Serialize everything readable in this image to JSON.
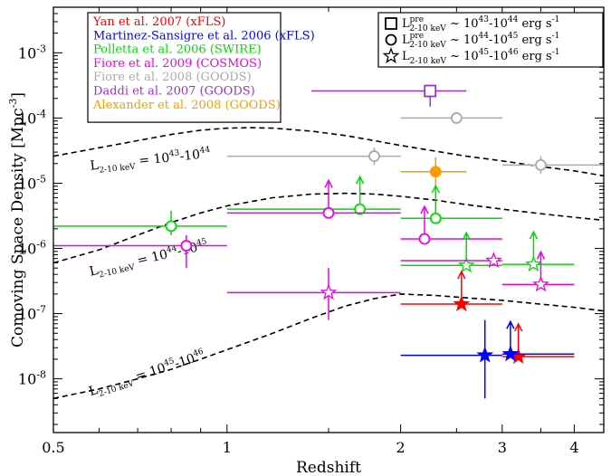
{
  "chart_data": {
    "type": "scatter",
    "xlabel": "Redshift",
    "ylabel": "Comoving Space Density [Mpc",
    "ylabel_sup": "-3",
    "ylabel_tail": "]",
    "x_scale": "log",
    "y_scale": "log",
    "xlim": [
      0.5,
      4.5
    ],
    "ylim": [
      1.5e-09,
      0.005
    ],
    "x_ticks": [
      {
        "value": 0.5,
        "label": "0.5"
      },
      {
        "value": 1,
        "label": "1"
      },
      {
        "value": 2,
        "label": "2"
      },
      {
        "value": 3,
        "label": "3"
      },
      {
        "value": 4,
        "label": "4"
      }
    ],
    "y_ticks": [
      {
        "value": 1e-08,
        "base": "10",
        "exp": "-8"
      },
      {
        "value": 1e-07,
        "base": "10",
        "exp": "-7"
      },
      {
        "value": 1e-06,
        "base": "10",
        "exp": "-6"
      },
      {
        "value": 1e-05,
        "base": "10",
        "exp": "-5"
      },
      {
        "value": 0.0001,
        "base": "10",
        "exp": "-4"
      },
      {
        "value": 0.001,
        "base": "10",
        "exp": "-3"
      }
    ],
    "legend_placement": "top-left",
    "legend": [
      {
        "label": "Yan et al. 2007 (xFLS)",
        "color": "#ff0000"
      },
      {
        "label": "Martinez-Sansigre et al. 2006 (xFLS)",
        "color": "#0000ff"
      },
      {
        "label": "Polletta et al. 2006 (SWIRE)",
        "color": "#00dd00"
      },
      {
        "label": "Fiore et al. 2009 (COSMOS)",
        "color": "#ee00ee"
      },
      {
        "label": "Fiore et al. 2008 (GOODS)",
        "color": "#aaaaaa"
      },
      {
        "label": "Daddi et al. 2007 (GOODS)",
        "color": "#9933cc"
      },
      {
        "label": "Alexander et al. 2008 (GOODS)",
        "color": "#ff9900"
      }
    ],
    "symbol_legend_placement": "top-right",
    "symbol_legend": [
      {
        "symbol": "square",
        "prefix": "L",
        "sup": "pre",
        "sub": "2-10 keV",
        "range": " ~ 10",
        "e1": "43",
        "mid": "-10",
        "e2": "44",
        "unit": " erg s",
        "uexp": "-1"
      },
      {
        "symbol": "circle",
        "prefix": "L",
        "sup": "pre",
        "sub": "2-10 keV",
        "range": " ~ 10",
        "e1": "44",
        "mid": "-10",
        "e2": "45",
        "unit": " erg s",
        "uexp": "-1"
      },
      {
        "symbol": "star",
        "prefix": "L",
        "sup": "",
        "sub": "2-10 keV",
        "range": " ~ 10",
        "e1": "45",
        "mid": "-10",
        "e2": "46",
        "unit": " erg s",
        "uexp": "-1"
      }
    ],
    "curves": [
      {
        "label_prefix": "L",
        "label_sub": "2-10 keV",
        "label_eq": " = 10",
        "e1": "43",
        "mid": "-10",
        "e2": "44",
        "label_at": [
          0.58,
          1.6e-05
        ],
        "x": [
          0.5,
          0.6,
          0.7,
          0.8,
          0.9,
          1.0,
          1.1,
          1.2,
          1.4,
          1.6,
          1.8,
          2.0,
          2.3,
          2.6,
          3.0,
          3.5,
          4.0,
          4.5
        ],
        "y": [
          2.6e-05,
          3.5e-05,
          4.5e-05,
          5.6e-05,
          6.5e-05,
          7e-05,
          7.1e-05,
          7e-05,
          6.3e-05,
          5.4e-05,
          4.5e-05,
          3.8e-05,
          3.1e-05,
          2.6e-05,
          2.2e-05,
          1.8e-05,
          1.55e-05,
          1.3e-05
        ]
      },
      {
        "label_prefix": "L",
        "label_sub": "2-10 keV",
        "label_eq": " = 10",
        "e1": "44",
        "mid": "-10",
        "e2": "45",
        "label_at": [
          0.58,
          3.8e-07
        ],
        "x": [
          0.5,
          0.6,
          0.7,
          0.8,
          0.9,
          1.0,
          1.2,
          1.4,
          1.6,
          1.8,
          2.0,
          2.3,
          2.6,
          3.0,
          3.5,
          4.0,
          4.5
        ],
        "y": [
          6e-07,
          9.5e-07,
          1.6e-06,
          2.5e-06,
          3.5e-06,
          4.5e-06,
          6e-06,
          6.8e-06,
          7e-06,
          6.8e-06,
          6.3e-06,
          5.5e-06,
          4.7e-06,
          4e-06,
          3.4e-06,
          3e-06,
          2.7e-06
        ]
      },
      {
        "label_prefix": "L",
        "label_sub": "2-10 keV",
        "label_eq": " = 10",
        "e1": "45",
        "mid": "-10",
        "e2": "46",
        "label_at": [
          0.58,
          5.5e-09
        ],
        "x": [
          0.5,
          0.6,
          0.7,
          0.8,
          0.9,
          1.0,
          1.2,
          1.4,
          1.6,
          1.8,
          2.0,
          2.3,
          2.6,
          3.0,
          3.5,
          4.0,
          4.5
        ],
        "y": [
          5e-09,
          7e-09,
          1e-08,
          1.4e-08,
          2e-08,
          2.8e-08,
          5e-08,
          8.5e-08,
          1.3e-07,
          1.7e-07,
          2e-07,
          1.9e-07,
          1.75e-07,
          1.6e-07,
          1.4e-07,
          1.25e-07,
          1.1e-07
        ]
      }
    ],
    "points": [
      {
        "source": "Daddi et al. 2007 (GOODS)",
        "color": "#9933cc",
        "symbol": "square",
        "filled": false,
        "x": 2.25,
        "y": 0.00026,
        "xlo": 1.4,
        "xhi": 2.6,
        "ylo": 0.00015,
        "yhi": 0.00026,
        "limit": false
      },
      {
        "source": "Fiore et al. 2008 (GOODS)",
        "color": "#aaaaaa",
        "symbol": "circle",
        "filled": false,
        "x": 2.5,
        "y": 0.0001,
        "xlo": 2.0,
        "xhi": 3.0,
        "ylo": 0.0001,
        "yhi": 0.0001,
        "limit": false
      },
      {
        "source": "Fiore et al. 2008 (GOODS)",
        "color": "#aaaaaa",
        "symbol": "circle",
        "filled": false,
        "x": 1.8,
        "y": 2.6e-05,
        "xlo": 1.0,
        "xhi": 2.0,
        "ylo": 1.9e-05,
        "yhi": 3.5e-05,
        "limit": false
      },
      {
        "source": "Fiore et al. 2008 (GOODS)",
        "color": "#aaaaaa",
        "symbol": "circle",
        "filled": false,
        "x": 3.5,
        "y": 1.9e-05,
        "xlo": 3.0,
        "xhi": 4.5,
        "ylo": 1.4e-05,
        "yhi": 2.6e-05,
        "limit": false
      },
      {
        "source": "Alexander et al. 2008 (GOODS)",
        "color": "#ff9900",
        "symbol": "circle",
        "filled": true,
        "x": 2.3,
        "y": 1.5e-05,
        "xlo": 2.0,
        "xhi": 2.6,
        "ylo": 9e-06,
        "yhi": 2.5e-05,
        "limit": false
      },
      {
        "source": "Polletta et al. 2006 (SWIRE)",
        "color": "#00dd00",
        "symbol": "circle",
        "filled": false,
        "x": 0.8,
        "y": 2.2e-06,
        "xlo": 0.5,
        "xhi": 1.0,
        "ylo": 1.6e-06,
        "yhi": 3.8e-06,
        "limit": false
      },
      {
        "source": "Polletta et al. 2006 (SWIRE)",
        "color": "#00dd00",
        "symbol": "circle",
        "filled": false,
        "x": 1.7,
        "y": 4e-06,
        "xlo": 1.0,
        "xhi": 2.0,
        "ylo": 4e-06,
        "yhi": 4e-06,
        "limit": true
      },
      {
        "source": "Polletta et al. 2006 (SWIRE)",
        "color": "#00dd00",
        "symbol": "circle",
        "filled": false,
        "x": 2.3,
        "y": 2.9e-06,
        "xlo": 2.0,
        "xhi": 3.0,
        "ylo": 2.9e-06,
        "yhi": 2.9e-06,
        "limit": true
      },
      {
        "source": "Fiore et al. 2009 (COSMOS)",
        "color": "#ee00ee",
        "symbol": "circle",
        "filled": false,
        "x": 0.85,
        "y": 1.1e-06,
        "xlo": 0.5,
        "xhi": 1.0,
        "ylo": 5e-07,
        "yhi": 1.6e-06,
        "limit": false
      },
      {
        "source": "Fiore et al. 2009 (COSMOS)",
        "color": "#ee00ee",
        "symbol": "circle",
        "filled": false,
        "x": 1.5,
        "y": 3.5e-06,
        "xlo": 1.0,
        "xhi": 2.0,
        "ylo": 3.5e-06,
        "yhi": 3.5e-06,
        "limit": true
      },
      {
        "source": "Fiore et al. 2009 (COSMOS)",
        "color": "#ee00ee",
        "symbol": "circle",
        "filled": false,
        "x": 2.2,
        "y": 1.4e-06,
        "xlo": 2.0,
        "xhi": 3.0,
        "ylo": 1.4e-06,
        "yhi": 1.4e-06,
        "limit": true
      },
      {
        "source": "Polletta et al. 2006 (SWIRE)",
        "color": "#00dd00",
        "symbol": "star",
        "filled": false,
        "x": 2.6,
        "y": 5.5e-07,
        "xlo": 2.0,
        "xhi": 3.0,
        "ylo": 5.5e-07,
        "yhi": 5.5e-07,
        "limit": true
      },
      {
        "source": "Polletta et al. 2006 (SWIRE)",
        "color": "#00dd00",
        "symbol": "star",
        "filled": false,
        "x": 3.4,
        "y": 5.7e-07,
        "xlo": 3.0,
        "xhi": 4.0,
        "ylo": 5.7e-07,
        "yhi": 5.7e-07,
        "limit": true
      },
      {
        "source": "Fiore et al. 2009 (COSMOS)",
        "color": "#ee00ee",
        "symbol": "star",
        "filled": false,
        "x": 2.9,
        "y": 6.5e-07,
        "xlo": 2.0,
        "xhi": 3.0,
        "ylo": 6.5e-07,
        "yhi": 6.5e-07,
        "limit": false
      },
      {
        "source": "Fiore et al. 2009 (COSMOS)",
        "color": "#ee00ee",
        "symbol": "star",
        "filled": false,
        "x": 3.5,
        "y": 2.8e-07,
        "xlo": 3.0,
        "xhi": 4.0,
        "ylo": 2.8e-07,
        "yhi": 2.8e-07,
        "limit": true
      },
      {
        "source": "Fiore et al. 2009 (COSMOS)",
        "color": "#ee00ee",
        "symbol": "star",
        "filled": false,
        "x": 1.5,
        "y": 2.1e-07,
        "xlo": 1.0,
        "xhi": 2.0,
        "ylo": 8e-08,
        "yhi": 5e-07,
        "limit": false
      },
      {
        "source": "Yan et al. 2007 (xFLS)",
        "color": "#ff0000",
        "symbol": "star",
        "filled": true,
        "x": 2.55,
        "y": 1.4e-07,
        "xlo": 2.0,
        "xhi": 3.0,
        "ylo": 1.4e-07,
        "yhi": 1.4e-07,
        "limit": true
      },
      {
        "source": "Yan et al. 2007 (xFLS)",
        "color": "#ff0000",
        "symbol": "star",
        "filled": true,
        "x": 3.2,
        "y": 2.2e-08,
        "xlo": 3.0,
        "xhi": 4.0,
        "ylo": 2.2e-08,
        "yhi": 2.2e-08,
        "limit": true
      },
      {
        "source": "Martinez-Sansigre et al. 2006 (xFLS)",
        "color": "#0000ff",
        "symbol": "star",
        "filled": true,
        "x": 2.8,
        "y": 2.3e-08,
        "xlo": 2.0,
        "xhi": 3.0,
        "ylo": 5e-09,
        "yhi": 8e-08,
        "limit": false
      },
      {
        "source": "Martinez-Sansigre et al. 2006 (xFLS)",
        "color": "#0000ff",
        "symbol": "star",
        "filled": true,
        "x": 3.1,
        "y": 2.4e-08,
        "xlo": 3.0,
        "xhi": 4.0,
        "ylo": 2.4e-08,
        "yhi": 2.4e-08,
        "limit": true
      }
    ]
  }
}
